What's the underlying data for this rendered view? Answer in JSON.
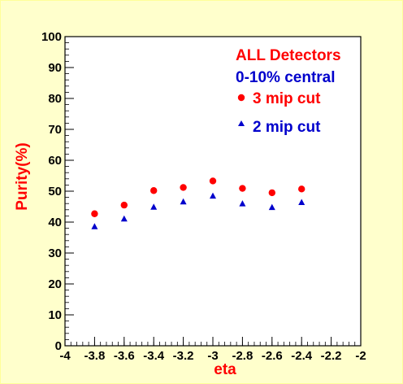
{
  "chart_data": {
    "type": "scatter",
    "xlabel": "eta",
    "ylabel": "Purity(%)",
    "xlim": [
      -4,
      -2
    ],
    "ylim": [
      0,
      100
    ],
    "x_ticks": [
      "-4",
      "-3.8",
      "-3.6",
      "-3.4",
      "-3.2",
      "-3",
      "-2.8",
      "-2.6",
      "-2.4",
      "-2.2",
      "-2"
    ],
    "y_ticks": [
      "0",
      "10",
      "20",
      "30",
      "40",
      "50",
      "60",
      "70",
      "80",
      "90",
      "100"
    ],
    "grid": false,
    "legend_position": "top-right",
    "annotations": [
      {
        "text": "ALL Detectors",
        "color": "#ff0000"
      },
      {
        "text": "0-10% central",
        "color": "#0000cc"
      }
    ],
    "series": [
      {
        "name": "3 mip cut",
        "marker": "circle",
        "color": "#ff0000",
        "x": [
          -3.8,
          -3.6,
          -3.4,
          -3.2,
          -3.0,
          -2.8,
          -2.6,
          -2.4
        ],
        "y": [
          42.7,
          45.5,
          50.2,
          51.2,
          53.3,
          50.9,
          49.5,
          50.7
        ]
      },
      {
        "name": "2 mip cut",
        "marker": "triangle",
        "color": "#0000cc",
        "x": [
          -3.8,
          -3.6,
          -3.4,
          -3.2,
          -3.0,
          -2.8,
          -2.6,
          -2.4
        ],
        "y": [
          38.5,
          41.0,
          44.8,
          46.5,
          48.4,
          45.9,
          44.7,
          46.3
        ]
      }
    ]
  }
}
